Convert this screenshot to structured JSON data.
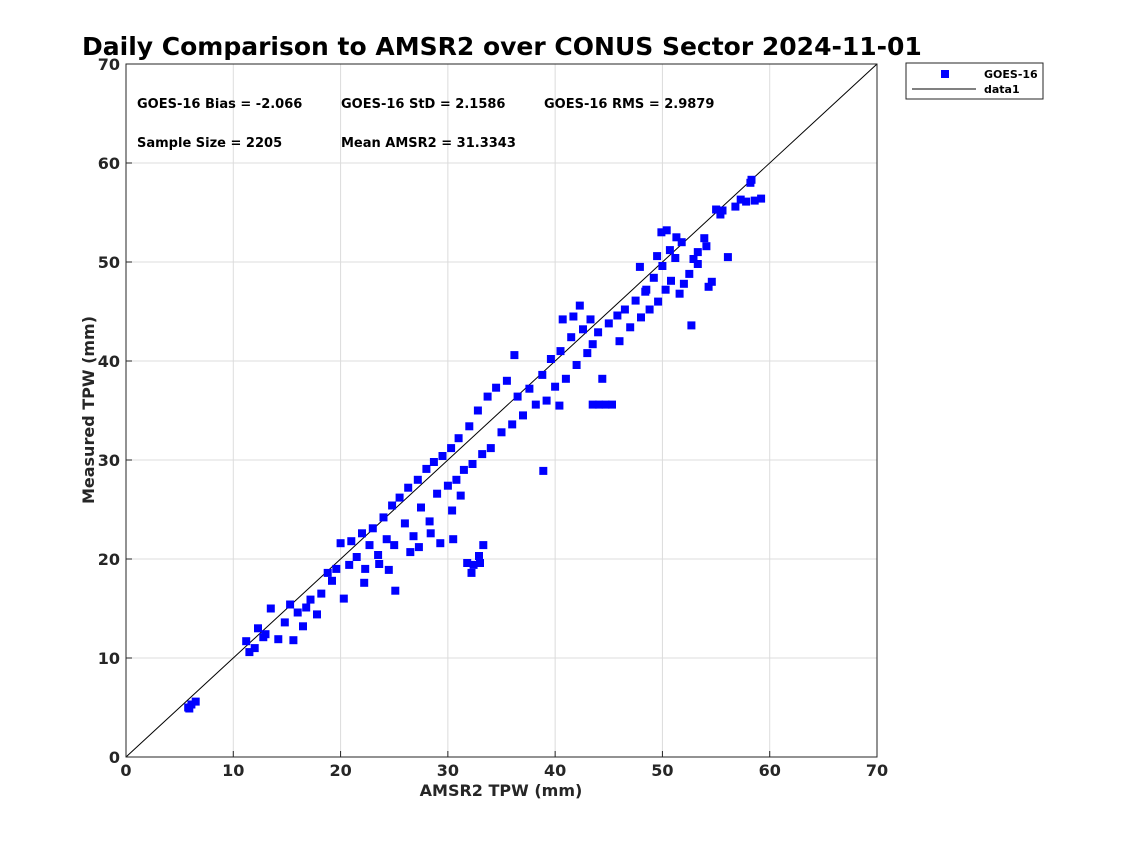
{
  "chart_data": {
    "type": "scatter",
    "title": "Daily Comparison to AMSR2 over CONUS Sector 2024-11-01",
    "xlabel": "AMSR2 TPW (mm)",
    "ylabel": "Measured TPW (mm)",
    "xlim": [
      0,
      70
    ],
    "ylim": [
      0,
      70
    ],
    "xticks": [
      0,
      10,
      20,
      30,
      40,
      50,
      60,
      70
    ],
    "yticks": [
      0,
      10,
      20,
      30,
      40,
      50,
      60,
      70
    ],
    "grid": true,
    "legend_position": "outside-top-right",
    "legend": [
      {
        "name": "GOES-16",
        "style": "marker",
        "color": "#0000ff"
      },
      {
        "name": "data1",
        "style": "line",
        "color": "#000000"
      }
    ],
    "stats": {
      "bias": "GOES-16 Bias = -2.066",
      "std": "GOES-16 StD = 2.1586",
      "rms": "GOES-16 RMS = 2.9879",
      "sample_size": "Sample Size = 2205",
      "mean_amsr2": "Mean AMSR2 = 31.3343"
    },
    "reference_line": {
      "name": "data1",
      "x": [
        0,
        70
      ],
      "y": [
        0,
        70
      ]
    },
    "series": [
      {
        "name": "GOES-16",
        "color": "#0000ff",
        "marker": "square",
        "points": [
          [
            5.8,
            5.0
          ],
          [
            6.1,
            5.3
          ],
          [
            6.5,
            5.6
          ],
          [
            5.9,
            4.9
          ],
          [
            11.2,
            11.7
          ],
          [
            11.5,
            10.6
          ],
          [
            12.0,
            11.0
          ],
          [
            12.3,
            13.0
          ],
          [
            13.0,
            12.4
          ],
          [
            13.5,
            15.0
          ],
          [
            14.2,
            11.9
          ],
          [
            14.8,
            13.6
          ],
          [
            15.3,
            15.4
          ],
          [
            16.0,
            14.6
          ],
          [
            16.5,
            13.2
          ],
          [
            17.2,
            15.9
          ],
          [
            17.8,
            14.4
          ],
          [
            18.2,
            16.5
          ],
          [
            12.8,
            12.1
          ],
          [
            15.6,
            11.8
          ],
          [
            16.8,
            15.1
          ],
          [
            18.8,
            18.6
          ],
          [
            19.2,
            17.8
          ],
          [
            19.6,
            19.0
          ],
          [
            20.0,
            21.6
          ],
          [
            20.3,
            16.0
          ],
          [
            20.8,
            19.4
          ],
          [
            21.0,
            21.8
          ],
          [
            21.5,
            20.2
          ],
          [
            22.0,
            22.6
          ],
          [
            22.3,
            19.0
          ],
          [
            22.7,
            21.4
          ],
          [
            23.0,
            23.1
          ],
          [
            23.5,
            20.4
          ],
          [
            24.0,
            24.2
          ],
          [
            24.3,
            22.0
          ],
          [
            24.8,
            25.4
          ],
          [
            25.0,
            21.4
          ],
          [
            25.5,
            26.2
          ],
          [
            26.0,
            23.6
          ],
          [
            26.3,
            27.2
          ],
          [
            26.8,
            22.3
          ],
          [
            27.2,
            28.0
          ],
          [
            27.5,
            25.2
          ],
          [
            28.0,
            29.1
          ],
          [
            28.3,
            23.8
          ],
          [
            28.7,
            29.8
          ],
          [
            29.0,
            26.6
          ],
          [
            29.5,
            30.4
          ],
          [
            30.0,
            27.4
          ],
          [
            30.3,
            31.2
          ],
          [
            30.8,
            28.0
          ],
          [
            31.0,
            32.2
          ],
          [
            31.5,
            29.0
          ],
          [
            32.0,
            33.4
          ],
          [
            32.3,
            29.6
          ],
          [
            32.8,
            35.0
          ],
          [
            33.2,
            30.6
          ],
          [
            33.7,
            36.4
          ],
          [
            34.0,
            31.2
          ],
          [
            34.5,
            37.3
          ],
          [
            35.0,
            32.8
          ],
          [
            35.5,
            38.0
          ],
          [
            36.0,
            33.6
          ],
          [
            22.2,
            17.6
          ],
          [
            23.6,
            19.5
          ],
          [
            24.5,
            18.9
          ],
          [
            25.1,
            16.8
          ],
          [
            26.5,
            20.7
          ],
          [
            27.3,
            21.2
          ],
          [
            28.4,
            22.6
          ],
          [
            29.3,
            21.6
          ],
          [
            30.4,
            24.9
          ],
          [
            31.2,
            26.4
          ],
          [
            32.2,
            18.6
          ],
          [
            32.4,
            19.4
          ],
          [
            32.9,
            20.3
          ],
          [
            33.3,
            21.4
          ],
          [
            31.8,
            19.6
          ],
          [
            33.0,
            19.6
          ],
          [
            30.5,
            22.0
          ],
          [
            38.9,
            28.9
          ],
          [
            36.5,
            36.4
          ],
          [
            37.0,
            34.5
          ],
          [
            37.6,
            37.2
          ],
          [
            38.2,
            35.6
          ],
          [
            38.8,
            38.6
          ],
          [
            39.2,
            36.0
          ],
          [
            39.6,
            40.2
          ],
          [
            40.0,
            37.4
          ],
          [
            40.5,
            41.0
          ],
          [
            41.0,
            38.2
          ],
          [
            41.5,
            42.4
          ],
          [
            42.0,
            39.6
          ],
          [
            42.6,
            43.2
          ],
          [
            43.0,
            40.8
          ],
          [
            43.5,
            41.7
          ],
          [
            44.0,
            42.9
          ],
          [
            44.4,
            38.2
          ],
          [
            45.0,
            43.8
          ],
          [
            45.3,
            35.6
          ],
          [
            45.8,
            44.6
          ],
          [
            46.0,
            42.0
          ],
          [
            46.5,
            45.2
          ],
          [
            47.0,
            43.4
          ],
          [
            47.5,
            46.1
          ],
          [
            48.0,
            44.4
          ],
          [
            48.4,
            47.0
          ],
          [
            48.8,
            45.2
          ],
          [
            49.2,
            48.4
          ],
          [
            49.6,
            46.0
          ],
          [
            50.0,
            49.6
          ],
          [
            50.3,
            47.2
          ],
          [
            50.8,
            48.1
          ],
          [
            51.2,
            50.4
          ],
          [
            51.6,
            46.8
          ],
          [
            52.0,
            47.8
          ],
          [
            52.7,
            43.6
          ],
          [
            53.3,
            51.0
          ],
          [
            40.7,
            44.2
          ],
          [
            41.7,
            44.5
          ],
          [
            42.3,
            45.6
          ],
          [
            43.3,
            44.2
          ],
          [
            40.4,
            35.5
          ],
          [
            43.5,
            35.6
          ],
          [
            44.1,
            35.6
          ],
          [
            44.7,
            35.6
          ],
          [
            36.2,
            40.6
          ],
          [
            47.9,
            49.5
          ],
          [
            48.5,
            47.2
          ],
          [
            49.5,
            50.6
          ],
          [
            49.9,
            53.0
          ],
          [
            50.4,
            53.2
          ],
          [
            50.7,
            51.2
          ],
          [
            51.3,
            52.5
          ],
          [
            51.8,
            52.0
          ],
          [
            52.5,
            48.8
          ],
          [
            52.9,
            50.3
          ],
          [
            53.3,
            49.8
          ],
          [
            53.9,
            52.4
          ],
          [
            54.1,
            51.6
          ],
          [
            54.3,
            47.5
          ],
          [
            54.6,
            48.0
          ],
          [
            55.0,
            55.3
          ],
          [
            55.4,
            54.8
          ],
          [
            55.6,
            55.2
          ],
          [
            56.1,
            50.5
          ],
          [
            56.8,
            55.6
          ],
          [
            57.3,
            56.3
          ],
          [
            57.8,
            56.1
          ],
          [
            58.2,
            58.0
          ],
          [
            58.3,
            58.3
          ],
          [
            58.6,
            56.2
          ],
          [
            59.2,
            56.4
          ]
        ]
      }
    ]
  }
}
